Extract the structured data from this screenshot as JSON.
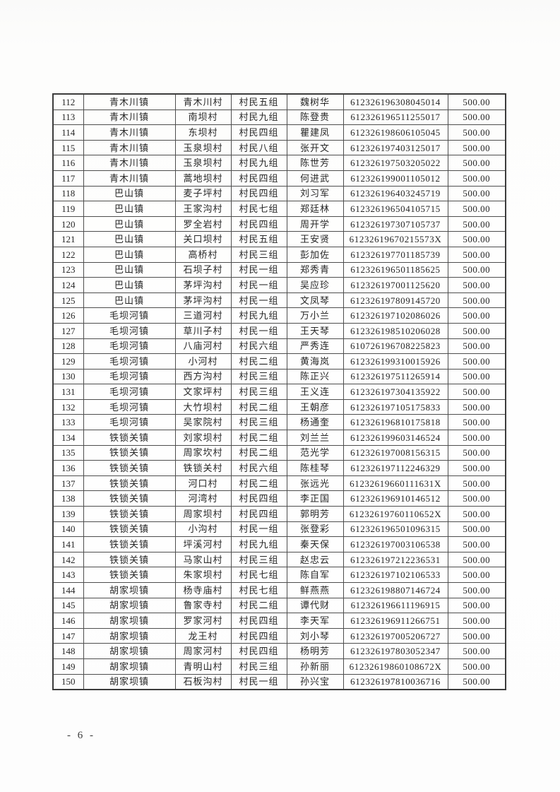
{
  "document": {
    "footer_page_number": "- 6 -"
  },
  "colors": {
    "paper": "#fdfdfd",
    "table_line": "#4e4e4e",
    "ink": "#262626"
  },
  "table": {
    "column_keys": [
      "index",
      "town",
      "village",
      "group",
      "name",
      "id-number",
      "amount"
    ],
    "rows": [
      [
        "112",
        "青木川镇",
        "青木川村",
        "村民五组",
        "魏树华",
        "612326196308045014",
        "500.00"
      ],
      [
        "113",
        "青木川镇",
        "南坝村",
        "村民九组",
        "陈登贵",
        "612326196511255017",
        "500.00"
      ],
      [
        "114",
        "青木川镇",
        "东坝村",
        "村民四组",
        "瞿建凤",
        "612326198606105045",
        "500.00"
      ],
      [
        "115",
        "青木川镇",
        "玉泉坝村",
        "村民八组",
        "张开文",
        "612326197403125017",
        "500.00"
      ],
      [
        "116",
        "青木川镇",
        "玉泉坝村",
        "村民九组",
        "陈世芳",
        "612326197503205022",
        "500.00"
      ],
      [
        "117",
        "青木川镇",
        "蒿地坝村",
        "村民四组",
        "何进武",
        "612326199001105012",
        "500.00"
      ],
      [
        "118",
        "巴山镇",
        "麦子坪村",
        "村民四组",
        "刘习军",
        "612326196403245719",
        "500.00"
      ],
      [
        "119",
        "巴山镇",
        "王家沟村",
        "村民七组",
        "郑廷林",
        "612326196504105715",
        "500.00"
      ],
      [
        "120",
        "巴山镇",
        "罗全岩村",
        "村民四组",
        "周开学",
        "612326197307105737",
        "500.00"
      ],
      [
        "121",
        "巴山镇",
        "关口坝村",
        "村民五组",
        "王安贤",
        "61232619670215573X",
        "500.00"
      ],
      [
        "122",
        "巴山镇",
        "高桥村",
        "村民三组",
        "彭加佐",
        "612326197701185739",
        "500.00"
      ],
      [
        "123",
        "巴山镇",
        "石坝子村",
        "村民一组",
        "郑秀青",
        "612326196501185625",
        "500.00"
      ],
      [
        "124",
        "巴山镇",
        "茅坪沟村",
        "村民一组",
        "吴应珍",
        "612326197001125620",
        "500.00"
      ],
      [
        "125",
        "巴山镇",
        "茅坪沟村",
        "村民一组",
        "文凤琴",
        "612326197809145720",
        "500.00"
      ],
      [
        "126",
        "毛坝河镇",
        "三道河村",
        "村民九组",
        "万小兰",
        "612326197102086026",
        "500.00"
      ],
      [
        "127",
        "毛坝河镇",
        "草川子村",
        "村民一组",
        "王天琴",
        "612326198510206028",
        "500.00"
      ],
      [
        "128",
        "毛坝河镇",
        "八庙河村",
        "村民六组",
        "严秀连",
        "610726196708225823",
        "500.00"
      ],
      [
        "129",
        "毛坝河镇",
        "小河村",
        "村民二组",
        "黄海岚",
        "612326199310015926",
        "500.00"
      ],
      [
        "130",
        "毛坝河镇",
        "西方沟村",
        "村民三组",
        "陈正兴",
        "612326197511265914",
        "500.00"
      ],
      [
        "131",
        "毛坝河镇",
        "文家坪村",
        "村民三组",
        "王义连",
        "612326197304135922",
        "500.00"
      ],
      [
        "132",
        "毛坝河镇",
        "大竹坝村",
        "村民二组",
        "王朝彦",
        "612326197105175833",
        "500.00"
      ],
      [
        "133",
        "毛坝河镇",
        "吴家院村",
        "村民三组",
        "杨通奎",
        "612326196810175818",
        "500.00"
      ],
      [
        "134",
        "铁锁关镇",
        "刘家坝村",
        "村民二组",
        "刘兰兰",
        "612326199603146524",
        "500.00"
      ],
      [
        "135",
        "铁锁关镇",
        "周家坎村",
        "村民二组",
        "范光学",
        "612326197008156315",
        "500.00"
      ],
      [
        "136",
        "铁锁关镇",
        "铁锁关村",
        "村民六组",
        "陈桂琴",
        "612326197112246329",
        "500.00"
      ],
      [
        "137",
        "铁锁关镇",
        "河口村",
        "村民二组",
        "张远光",
        "61232619660111631X",
        "500.00"
      ],
      [
        "138",
        "铁锁关镇",
        "河湾村",
        "村民四组",
        "李正国",
        "612326196910146512",
        "500.00"
      ],
      [
        "139",
        "铁锁关镇",
        "周家坝村",
        "村民四组",
        "郭明芳",
        "61232619760110652X",
        "500.00"
      ],
      [
        "140",
        "铁锁关镇",
        "小沟村",
        "村民一组",
        "张登彩",
        "612326196501096315",
        "500.00"
      ],
      [
        "141",
        "铁锁关镇",
        "坪溪河村",
        "村民九组",
        "秦天保",
        "612326197003106538",
        "500.00"
      ],
      [
        "142",
        "铁锁关镇",
        "马家山村",
        "村民三组",
        "赵忠云",
        "612326197212236531",
        "500.00"
      ],
      [
        "143",
        "铁锁关镇",
        "朱家坝村",
        "村民七组",
        "陈自军",
        "612326197102106533",
        "500.00"
      ],
      [
        "144",
        "胡家坝镇",
        "杨寺庙村",
        "村民七组",
        "鲜燕燕",
        "612326198807146724",
        "500.00"
      ],
      [
        "145",
        "胡家坝镇",
        "鲁家寺村",
        "村民二组",
        "谭代财",
        "612326196611196915",
        "500.00"
      ],
      [
        "146",
        "胡家坝镇",
        "罗家河村",
        "村民四组",
        "李天军",
        "612326196911266751",
        "500.00"
      ],
      [
        "147",
        "胡家坝镇",
        "龙王村",
        "村民四组",
        "刘小琴",
        "612326197005206727",
        "500.00"
      ],
      [
        "148",
        "胡家坝镇",
        "周家河村",
        "村民四组",
        "杨明芳",
        "612326197803052347",
        "500.00"
      ],
      [
        "149",
        "胡家坝镇",
        "青明山村",
        "村民三组",
        "孙新丽",
        "61232619860108672X",
        "500.00"
      ],
      [
        "150",
        "胡家坝镇",
        "石板沟村",
        "村民一组",
        "孙兴宝",
        "612326197810036716",
        "500.00"
      ]
    ]
  }
}
